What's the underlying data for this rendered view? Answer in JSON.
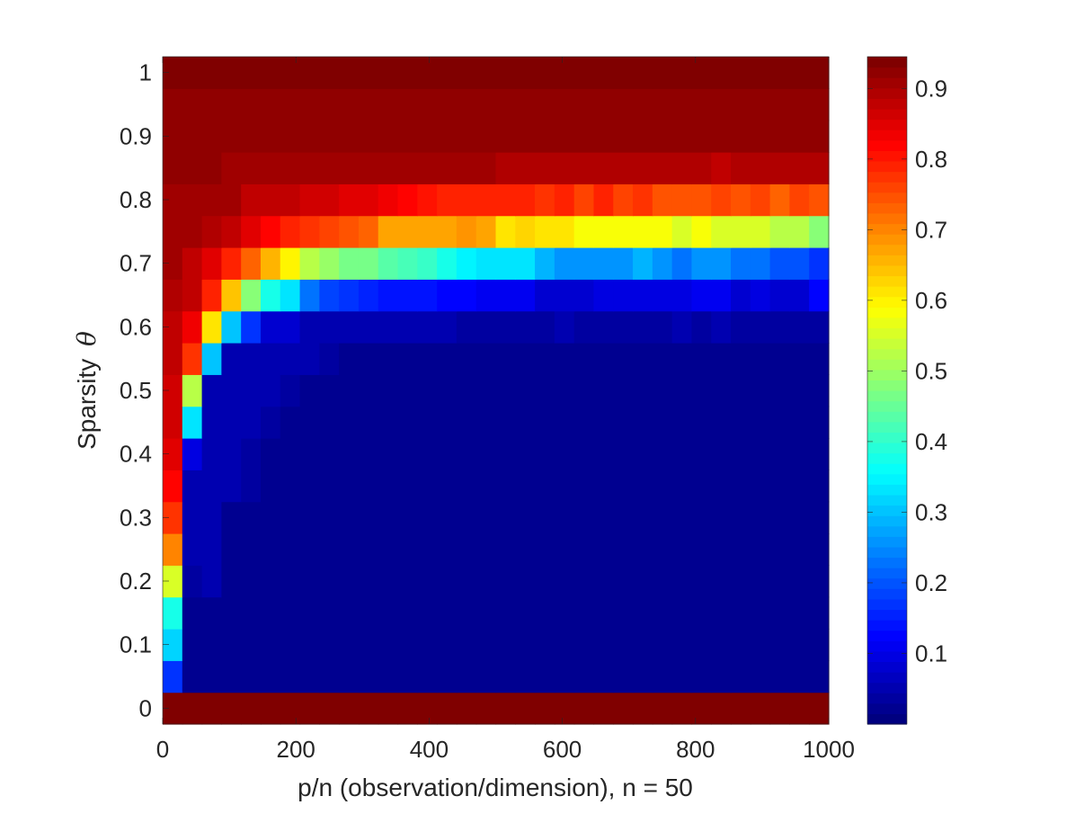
{
  "chart_data": {
    "type": "heatmap",
    "title": "",
    "xlabel": "p/n (observation/dimension), n = 50",
    "ylabel_text": "Sparsity",
    "ylabel_symbol": "θ",
    "xlim": [
      0,
      1000
    ],
    "ylim": [
      0,
      1
    ],
    "x_ticks": [
      "0",
      "200",
      "400",
      "600",
      "800",
      "1000"
    ],
    "y_ticks": [
      "0",
      "0.1",
      "0.2",
      "0.3",
      "0.4",
      "0.5",
      "0.6",
      "0.7",
      "0.8",
      "0.9",
      "1"
    ],
    "colorbar": {
      "colormap": "jet",
      "range": [
        0.0,
        0.945
      ],
      "ticks": [
        "0.1",
        "0.2",
        "0.3",
        "0.4",
        "0.5",
        "0.6",
        "0.7",
        "0.8",
        "0.9"
      ]
    },
    "grid": {
      "columns": 34,
      "rows_bottom_to_top": [
        0,
        0.05,
        0.1,
        0.15,
        0.2,
        0.25,
        0.3,
        0.35,
        0.4,
        0.45,
        0.5,
        0.55,
        0.6,
        0.65,
        0.7,
        0.75,
        0.8,
        0.85,
        0.9,
        0.95,
        1
      ],
      "note_values": "values[row][col], row 0 = theta 0 (bottom), 34 columns spanning p/n 0 to 1000",
      "values": [
        [
          0.94,
          0.94,
          0.94,
          0.94,
          0.94,
          0.94,
          0.94,
          0.94,
          0.94,
          0.94,
          0.94,
          0.94,
          0.94,
          0.94,
          0.94,
          0.94,
          0.94,
          0.94,
          0.94,
          0.94,
          0.94,
          0.94,
          0.94,
          0.94,
          0.94,
          0.94,
          0.94,
          0.94,
          0.94,
          0.94,
          0.94,
          0.94,
          0.94,
          0.94
        ],
        [
          0.17,
          0.02,
          0.02,
          0.02,
          0.02,
          0.02,
          0.02,
          0.02,
          0.02,
          0.02,
          0.02,
          0.02,
          0.02,
          0.02,
          0.02,
          0.02,
          0.02,
          0.02,
          0.02,
          0.02,
          0.02,
          0.02,
          0.02,
          0.02,
          0.02,
          0.02,
          0.02,
          0.02,
          0.02,
          0.02,
          0.02,
          0.02,
          0.02,
          0.02
        ],
        [
          0.31,
          0.02,
          0.02,
          0.02,
          0.02,
          0.02,
          0.02,
          0.02,
          0.02,
          0.02,
          0.02,
          0.02,
          0.02,
          0.02,
          0.02,
          0.02,
          0.02,
          0.02,
          0.02,
          0.02,
          0.02,
          0.02,
          0.02,
          0.02,
          0.02,
          0.02,
          0.02,
          0.02,
          0.02,
          0.02,
          0.02,
          0.02,
          0.02,
          0.02
        ],
        [
          0.38,
          0.02,
          0.02,
          0.02,
          0.02,
          0.02,
          0.02,
          0.02,
          0.02,
          0.02,
          0.02,
          0.02,
          0.02,
          0.02,
          0.02,
          0.02,
          0.02,
          0.02,
          0.02,
          0.02,
          0.02,
          0.02,
          0.02,
          0.02,
          0.02,
          0.02,
          0.02,
          0.02,
          0.02,
          0.02,
          0.02,
          0.02,
          0.02,
          0.02
        ],
        [
          0.56,
          0.03,
          0.04,
          0.02,
          0.02,
          0.02,
          0.02,
          0.02,
          0.02,
          0.02,
          0.02,
          0.02,
          0.02,
          0.02,
          0.02,
          0.02,
          0.02,
          0.02,
          0.02,
          0.02,
          0.02,
          0.02,
          0.02,
          0.02,
          0.02,
          0.02,
          0.02,
          0.02,
          0.02,
          0.02,
          0.02,
          0.02,
          0.02,
          0.02
        ],
        [
          0.71,
          0.04,
          0.04,
          0.02,
          0.02,
          0.02,
          0.02,
          0.02,
          0.02,
          0.02,
          0.02,
          0.02,
          0.02,
          0.02,
          0.02,
          0.02,
          0.02,
          0.02,
          0.02,
          0.02,
          0.02,
          0.02,
          0.02,
          0.02,
          0.02,
          0.02,
          0.02,
          0.02,
          0.02,
          0.02,
          0.02,
          0.02,
          0.02,
          0.02
        ],
        [
          0.78,
          0.05,
          0.04,
          0.02,
          0.02,
          0.02,
          0.02,
          0.02,
          0.02,
          0.02,
          0.02,
          0.02,
          0.02,
          0.02,
          0.02,
          0.02,
          0.02,
          0.02,
          0.02,
          0.02,
          0.02,
          0.02,
          0.02,
          0.02,
          0.02,
          0.02,
          0.02,
          0.02,
          0.02,
          0.02,
          0.02,
          0.02,
          0.02,
          0.02
        ],
        [
          0.82,
          0.05,
          0.04,
          0.04,
          0.03,
          0.02,
          0.02,
          0.02,
          0.02,
          0.02,
          0.02,
          0.02,
          0.02,
          0.02,
          0.02,
          0.02,
          0.02,
          0.02,
          0.02,
          0.02,
          0.02,
          0.02,
          0.02,
          0.02,
          0.02,
          0.02,
          0.02,
          0.02,
          0.02,
          0.02,
          0.02,
          0.02,
          0.02,
          0.02
        ],
        [
          0.86,
          0.09,
          0.04,
          0.04,
          0.03,
          0.02,
          0.02,
          0.02,
          0.02,
          0.02,
          0.02,
          0.02,
          0.02,
          0.02,
          0.02,
          0.02,
          0.02,
          0.02,
          0.02,
          0.02,
          0.02,
          0.02,
          0.02,
          0.02,
          0.02,
          0.02,
          0.02,
          0.02,
          0.02,
          0.02,
          0.02,
          0.02,
          0.02,
          0.02
        ],
        [
          0.87,
          0.33,
          0.04,
          0.04,
          0.04,
          0.03,
          0.02,
          0.02,
          0.02,
          0.02,
          0.02,
          0.02,
          0.02,
          0.02,
          0.02,
          0.02,
          0.02,
          0.02,
          0.02,
          0.02,
          0.02,
          0.02,
          0.02,
          0.02,
          0.02,
          0.02,
          0.02,
          0.02,
          0.02,
          0.02,
          0.02,
          0.02,
          0.02,
          0.02
        ],
        [
          0.87,
          0.53,
          0.05,
          0.04,
          0.04,
          0.04,
          0.03,
          0.02,
          0.02,
          0.02,
          0.02,
          0.02,
          0.02,
          0.02,
          0.02,
          0.02,
          0.02,
          0.02,
          0.02,
          0.02,
          0.02,
          0.02,
          0.02,
          0.02,
          0.02,
          0.02,
          0.02,
          0.02,
          0.02,
          0.02,
          0.02,
          0.02,
          0.02,
          0.02
        ],
        [
          0.88,
          0.78,
          0.3,
          0.05,
          0.05,
          0.04,
          0.04,
          0.04,
          0.03,
          0.02,
          0.02,
          0.02,
          0.02,
          0.02,
          0.02,
          0.02,
          0.02,
          0.02,
          0.02,
          0.02,
          0.02,
          0.02,
          0.02,
          0.02,
          0.02,
          0.02,
          0.02,
          0.02,
          0.02,
          0.02,
          0.02,
          0.02,
          0.02,
          0.02
        ],
        [
          0.89,
          0.84,
          0.62,
          0.3,
          0.16,
          0.08,
          0.07,
          0.05,
          0.05,
          0.04,
          0.05,
          0.04,
          0.04,
          0.04,
          0.04,
          0.03,
          0.03,
          0.03,
          0.03,
          0.03,
          0.04,
          0.03,
          0.03,
          0.03,
          0.03,
          0.03,
          0.04,
          0.03,
          0.04,
          0.03,
          0.03,
          0.03,
          0.03,
          0.03
        ],
        [
          0.9,
          0.88,
          0.79,
          0.65,
          0.48,
          0.38,
          0.33,
          0.22,
          0.18,
          0.16,
          0.15,
          0.14,
          0.13,
          0.13,
          0.12,
          0.12,
          0.11,
          0.11,
          0.11,
          0.08,
          0.08,
          0.08,
          0.09,
          0.09,
          0.09,
          0.09,
          0.09,
          0.1,
          0.1,
          0.07,
          0.09,
          0.08,
          0.08,
          0.12
        ],
        [
          0.91,
          0.89,
          0.85,
          0.8,
          0.73,
          0.66,
          0.6,
          0.52,
          0.49,
          0.47,
          0.46,
          0.43,
          0.42,
          0.4,
          0.37,
          0.34,
          0.33,
          0.33,
          0.33,
          0.29,
          0.26,
          0.26,
          0.26,
          0.26,
          0.29,
          0.26,
          0.22,
          0.25,
          0.26,
          0.23,
          0.23,
          0.2,
          0.2,
          0.16
        ],
        [
          0.92,
          0.91,
          0.9,
          0.88,
          0.85,
          0.83,
          0.8,
          0.78,
          0.76,
          0.75,
          0.74,
          0.68,
          0.68,
          0.68,
          0.68,
          0.69,
          0.68,
          0.62,
          0.63,
          0.62,
          0.62,
          0.58,
          0.58,
          0.58,
          0.58,
          0.58,
          0.56,
          0.58,
          0.56,
          0.55,
          0.56,
          0.52,
          0.52,
          0.48
        ],
        [
          0.92,
          0.92,
          0.92,
          0.91,
          0.89,
          0.88,
          0.88,
          0.87,
          0.87,
          0.86,
          0.85,
          0.84,
          0.82,
          0.81,
          0.8,
          0.79,
          0.79,
          0.8,
          0.79,
          0.78,
          0.79,
          0.77,
          0.8,
          0.77,
          0.78,
          0.75,
          0.75,
          0.75,
          0.76,
          0.75,
          0.76,
          0.74,
          0.77,
          0.75
        ],
        [
          0.93,
          0.93,
          0.93,
          0.92,
          0.92,
          0.92,
          0.92,
          0.92,
          0.92,
          0.91,
          0.91,
          0.91,
          0.91,
          0.91,
          0.91,
          0.91,
          0.91,
          0.9,
          0.9,
          0.9,
          0.9,
          0.9,
          0.9,
          0.9,
          0.9,
          0.9,
          0.9,
          0.9,
          0.89,
          0.9,
          0.9,
          0.9,
          0.9,
          0.9
        ],
        [
          0.93,
          0.93,
          0.93,
          0.93,
          0.93,
          0.93,
          0.93,
          0.93,
          0.93,
          0.93,
          0.93,
          0.93,
          0.93,
          0.93,
          0.93,
          0.93,
          0.93,
          0.93,
          0.93,
          0.93,
          0.93,
          0.93,
          0.93,
          0.93,
          0.93,
          0.93,
          0.93,
          0.93,
          0.93,
          0.93,
          0.93,
          0.93,
          0.93,
          0.93
        ],
        [
          0.93,
          0.93,
          0.93,
          0.93,
          0.93,
          0.93,
          0.93,
          0.93,
          0.93,
          0.93,
          0.93,
          0.93,
          0.93,
          0.93,
          0.93,
          0.93,
          0.93,
          0.93,
          0.93,
          0.93,
          0.93,
          0.93,
          0.93,
          0.93,
          0.93,
          0.93,
          0.93,
          0.93,
          0.93,
          0.93,
          0.93,
          0.93,
          0.93,
          0.93
        ],
        [
          0.94,
          0.94,
          0.94,
          0.94,
          0.94,
          0.94,
          0.94,
          0.94,
          0.94,
          0.94,
          0.94,
          0.94,
          0.94,
          0.94,
          0.94,
          0.94,
          0.94,
          0.94,
          0.94,
          0.94,
          0.94,
          0.94,
          0.94,
          0.94,
          0.94,
          0.94,
          0.94,
          0.94,
          0.94,
          0.94,
          0.94,
          0.94,
          0.94,
          0.94
        ]
      ]
    }
  }
}
